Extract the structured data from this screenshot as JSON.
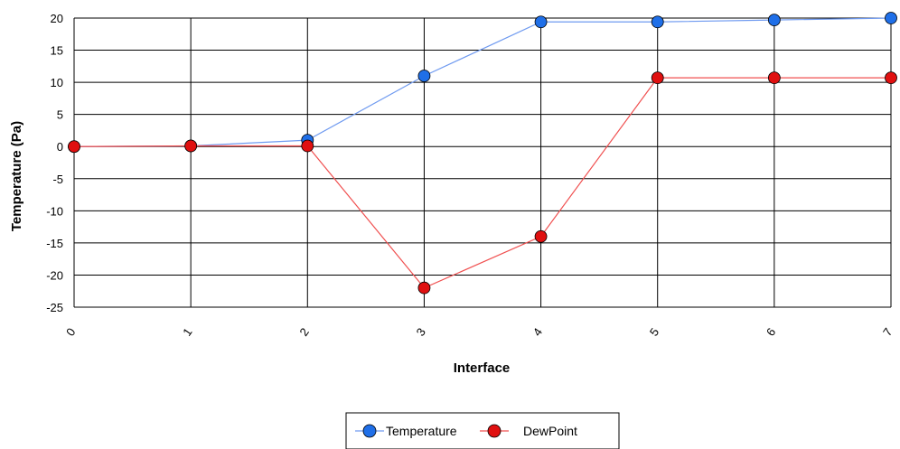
{
  "chart_data": {
    "type": "line",
    "title": "",
    "xlabel": "Interface",
    "ylabel": "Temperature (Pa)",
    "x": [
      0,
      1,
      2,
      3,
      4,
      5,
      6,
      7
    ],
    "x_tick_labels": [
      "0",
      "1",
      "2",
      "3",
      "4",
      "5",
      "6",
      "7"
    ],
    "xlim": [
      0,
      7
    ],
    "ylim": [
      -25,
      20
    ],
    "y_ticks": [
      20,
      15,
      10,
      5,
      0,
      -5,
      -10,
      -15,
      -20,
      -25
    ],
    "y_tick_labels": [
      "20",
      "15",
      "10",
      "5",
      "0",
      "-5",
      "-10",
      "-15",
      "-20",
      "-25"
    ],
    "grid": true,
    "legend_position": "bottom-center",
    "series": [
      {
        "name": "Temperature",
        "color": "#1f6fe8",
        "line_color": "#6f9af0",
        "values": [
          0,
          0.1,
          1.0,
          11.0,
          19.4,
          19.4,
          19.7,
          20.0
        ]
      },
      {
        "name": "DewPoint",
        "color": "#e01010",
        "line_color": "#f05050",
        "values": [
          0,
          0.1,
          0.1,
          -22.0,
          -14.0,
          10.7,
          10.7,
          10.7
        ]
      }
    ]
  }
}
